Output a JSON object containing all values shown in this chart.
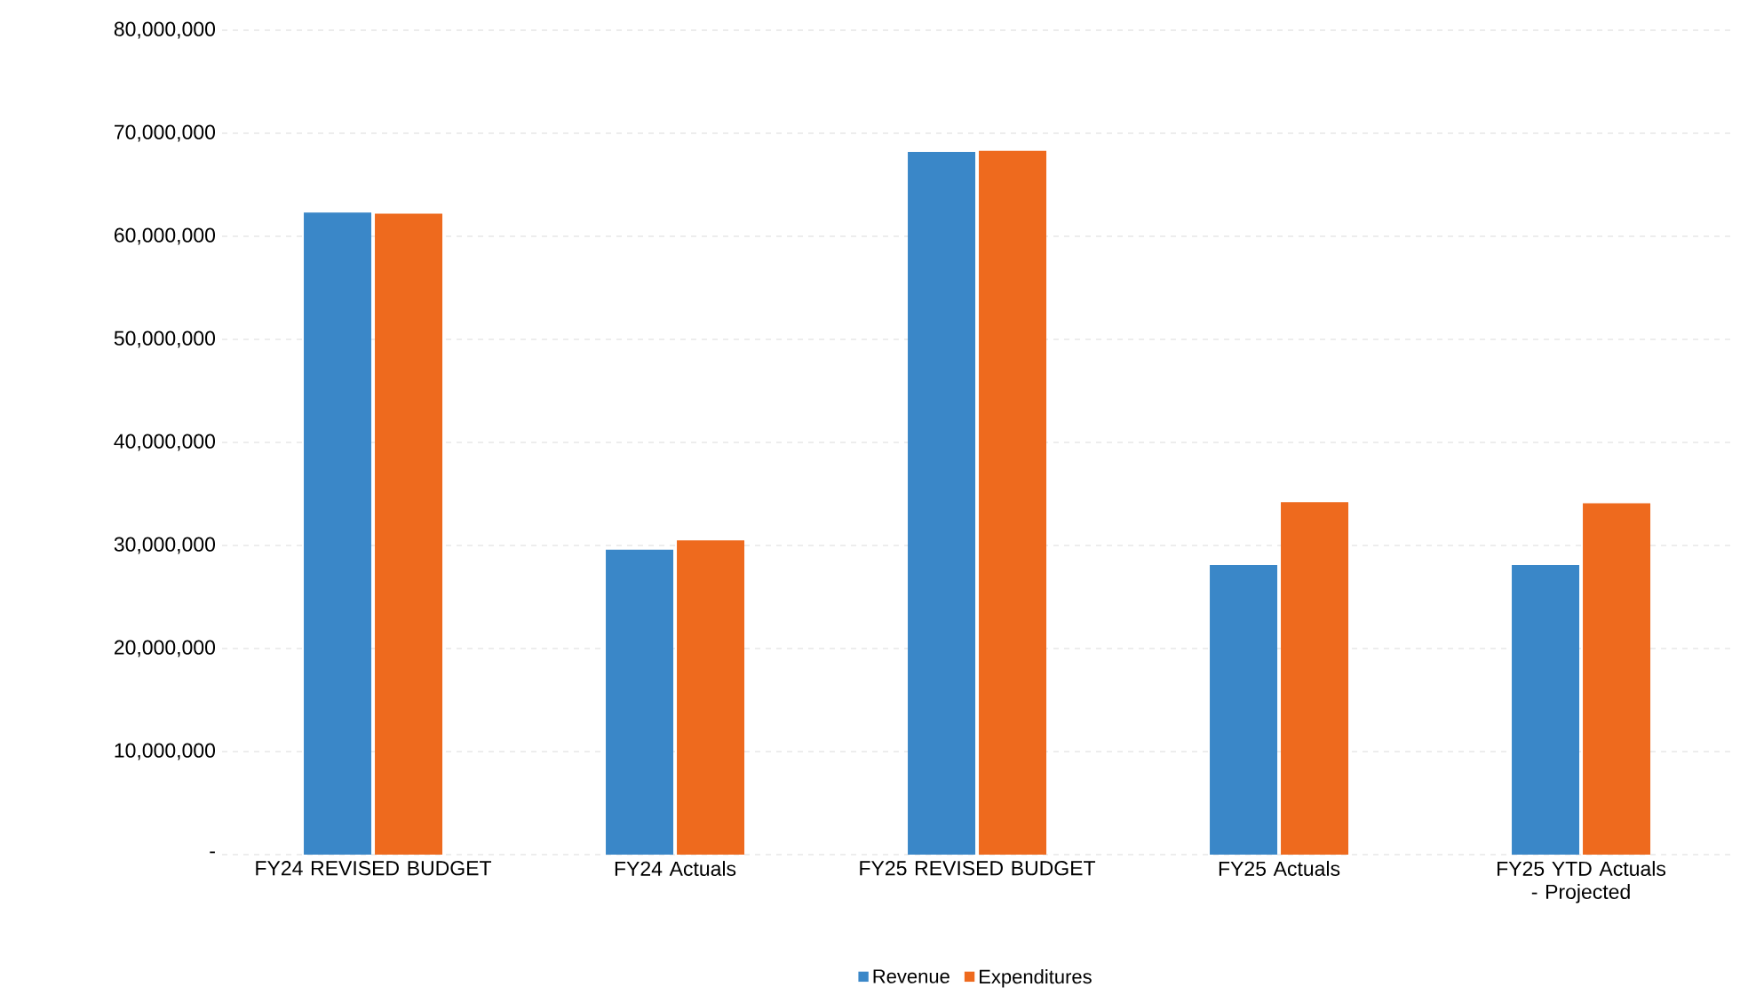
{
  "chart_data": {
    "type": "bar",
    "categories": [
      "FY24 REVISED BUDGET",
      "FY24 Actuals",
      "FY25 REVISED BUDGET",
      "FY25 Actuals",
      "FY25 YTD Actuals - Projected"
    ],
    "series": [
      {
        "name": "Revenue",
        "color": "#3a87c8",
        "values": [
          62300000,
          29600000,
          68200000,
          28100000,
          28100000
        ]
      },
      {
        "name": "Expenditures",
        "color": "#ee6a1e",
        "values": [
          62200000,
          30500000,
          68300000,
          34200000,
          34100000
        ]
      }
    ],
    "ylim": [
      0,
      80000000
    ],
    "yticks": [
      {
        "value": 0,
        "label": "-"
      },
      {
        "value": 10000000,
        "label": "10,000,000"
      },
      {
        "value": 20000000,
        "label": "20,000,000"
      },
      {
        "value": 30000000,
        "label": "30,000,000"
      },
      {
        "value": 40000000,
        "label": "40,000,000"
      },
      {
        "value": 50000000,
        "label": "50,000,000"
      },
      {
        "value": 60000000,
        "label": "60,000,000"
      },
      {
        "value": 70000000,
        "label": "70,000,000"
      },
      {
        "value": 80000000,
        "label": "80,000,000"
      }
    ],
    "grid": "y",
    "legend": "bottom"
  }
}
